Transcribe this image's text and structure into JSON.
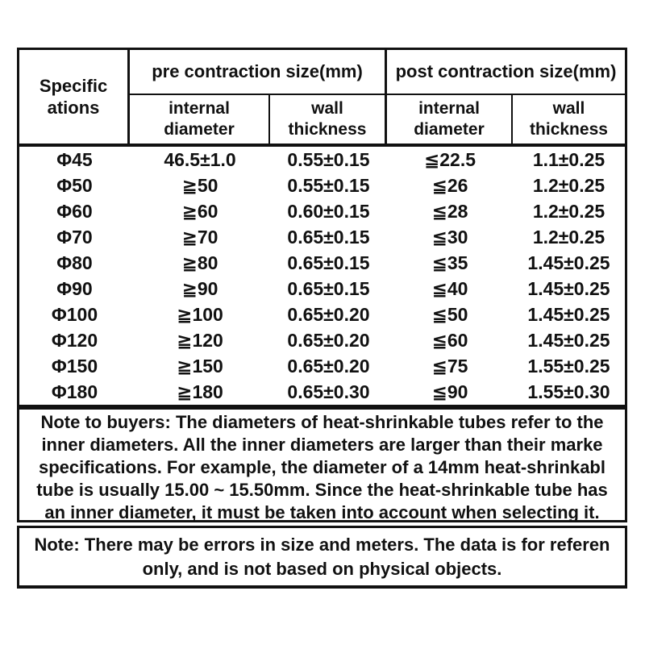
{
  "page": {
    "background_color": "#ffffff",
    "text_color": "#111111",
    "border_color": "#111111"
  },
  "table": {
    "header": {
      "specifications": "Specific\nations",
      "pre_group": "pre contraction size(mm)",
      "post_group": "post contraction size(mm)",
      "pre_internal": "internal\ndiameter",
      "pre_wall": "wall\nthickness",
      "post_internal": "internal\ndiameter",
      "post_wall": "wall\nthickness"
    },
    "rows": [
      {
        "spec": "Φ45",
        "pre_internal": "46.5±1.0",
        "pre_wall": "0.55±0.15",
        "post_internal": "≦22.5",
        "post_wall": "1.1±0.25"
      },
      {
        "spec": "Φ50",
        "pre_internal": "≧50",
        "pre_wall": "0.55±0.15",
        "post_internal": "≦26",
        "post_wall": "1.2±0.25"
      },
      {
        "spec": "Φ60",
        "pre_internal": "≧60",
        "pre_wall": "0.60±0.15",
        "post_internal": "≦28",
        "post_wall": "1.2±0.25"
      },
      {
        "spec": "Φ70",
        "pre_internal": "≧70",
        "pre_wall": "0.65±0.15",
        "post_internal": "≦30",
        "post_wall": "1.2±0.25"
      },
      {
        "spec": "Φ80",
        "pre_internal": "≧80",
        "pre_wall": "0.65±0.15",
        "post_internal": "≦35",
        "post_wall": "1.45±0.25"
      },
      {
        "spec": "Φ90",
        "pre_internal": "≧90",
        "pre_wall": "0.65±0.15",
        "post_internal": "≦40",
        "post_wall": "1.45±0.25"
      },
      {
        "spec": "Φ100",
        "pre_internal": "≧100",
        "pre_wall": "0.65±0.20",
        "post_internal": "≦50",
        "post_wall": "1.45±0.25"
      },
      {
        "spec": "Φ120",
        "pre_internal": "≧120",
        "pre_wall": "0.65±0.20",
        "post_internal": "≦60",
        "post_wall": "1.45±0.25"
      },
      {
        "spec": "Φ150",
        "pre_internal": "≧150",
        "pre_wall": "0.65±0.20",
        "post_internal": "≦75",
        "post_wall": "1.55±0.25"
      },
      {
        "spec": "Φ180",
        "pre_internal": "≧180",
        "pre_wall": "0.65±0.30",
        "post_internal": "≦90",
        "post_wall": "1.55±0.30"
      }
    ]
  },
  "buyer_note": {
    "lines": [
      "Note to buyers: The diameters of heat-shrinkable tubes refer to the",
      "inner diameters. All the inner diameters are larger than their marke",
      "specifications. For example, the diameter of a 14mm heat-shrinkabl",
      "tube is usually 15.00 ~ 15.50mm. Since the heat-shrinkable tube has",
      "an inner diameter, it must be taken into account when selecting it."
    ]
  },
  "size_note": {
    "lines": [
      "Note: There may be errors in size and meters. The data is for referen",
      "only, and is not based on physical objects."
    ]
  }
}
